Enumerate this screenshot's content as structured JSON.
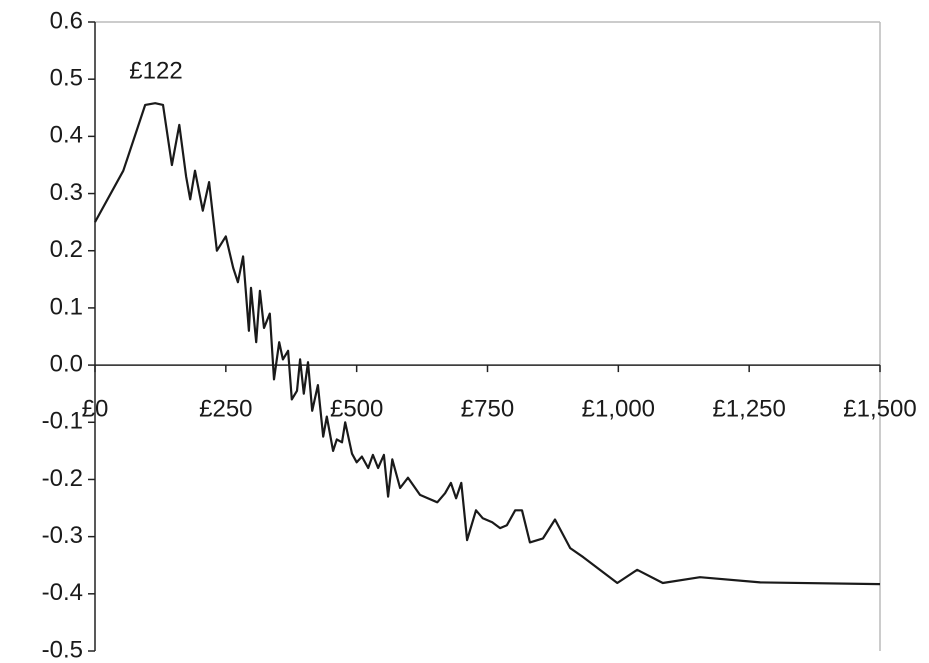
{
  "chart_data": {
    "type": "line",
    "annotation": "£122",
    "color": "#1a1a1a",
    "x": [
      0,
      54,
      96,
      115,
      130,
      147,
      161,
      174,
      182,
      191,
      206,
      218,
      233,
      250,
      264,
      273,
      283,
      294,
      298,
      308,
      315,
      323,
      334,
      342,
      352,
      359,
      369,
      376,
      386,
      392,
      399,
      407,
      415,
      426,
      436,
      443,
      455,
      462,
      472,
      478,
      491,
      500,
      510,
      522,
      531,
      541,
      552,
      560,
      568,
      583,
      598,
      621,
      636,
      654,
      669,
      680,
      690,
      700,
      711,
      728,
      741,
      759,
      774,
      787,
      803,
      816,
      831,
      856,
      879,
      908,
      933,
      998,
      1036,
      1085,
      1156,
      1271,
      1500
    ],
    "values": [
      0.25,
      0.34,
      0.455,
      0.458,
      0.455,
      0.35,
      0.42,
      0.33,
      0.29,
      0.34,
      0.27,
      0.32,
      0.2,
      0.225,
      0.17,
      0.145,
      0.19,
      0.06,
      0.135,
      0.04,
      0.13,
      0.065,
      0.09,
      -0.025,
      0.04,
      0.01,
      0.025,
      -0.06,
      -0.045,
      0.01,
      -0.05,
      0.005,
      -0.08,
      -0.035,
      -0.125,
      -0.09,
      -0.15,
      -0.13,
      -0.135,
      -0.1,
      -0.155,
      -0.17,
      -0.16,
      -0.18,
      -0.157,
      -0.18,
      -0.157,
      -0.23,
      -0.165,
      -0.215,
      -0.197,
      -0.227,
      -0.233,
      -0.24,
      -0.224,
      -0.206,
      -0.233,
      -0.206,
      -0.306,
      -0.254,
      -0.268,
      -0.275,
      -0.285,
      -0.28,
      -0.254,
      -0.254,
      -0.31,
      -0.303,
      -0.27,
      -0.32,
      -0.336,
      -0.381,
      -0.358,
      -0.381,
      -0.371,
      -0.38,
      -0.383
    ],
    "xlim": [
      0,
      1500
    ],
    "xticks": [
      {
        "value": 0,
        "label": "£0"
      },
      {
        "value": 250,
        "label": "£250"
      },
      {
        "value": 500,
        "label": "£500"
      },
      {
        "value": 750,
        "label": "£750"
      },
      {
        "value": 1000,
        "label": "£1,000"
      },
      {
        "value": 1250,
        "label": "£1,250"
      },
      {
        "value": 1500,
        "label": "£1,500"
      }
    ],
    "ylim": [
      -0.5,
      0.6
    ],
    "yticks": [
      0.6,
      0.5,
      0.4,
      0.3,
      0.2,
      0.1,
      {
        "value": 0,
        "label": "0.0"
      },
      -0.1,
      -0.2,
      -0.3,
      -0.4,
      -0.5
    ]
  }
}
